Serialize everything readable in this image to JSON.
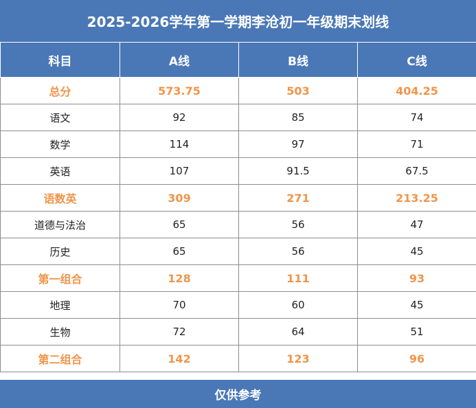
{
  "title": "2025-2026学年第一学期李沧初一年级期末划线",
  "header": {
    "subject": "科目",
    "a": "A线",
    "b": "B线",
    "c": "C线"
  },
  "rows": [
    {
      "subject": "总分",
      "a": "573.75",
      "b": "503",
      "c": "404.25",
      "highlight": true
    },
    {
      "subject": "语文",
      "a": "92",
      "b": "85",
      "c": "74",
      "highlight": false
    },
    {
      "subject": "数学",
      "a": "114",
      "b": "97",
      "c": "71",
      "highlight": false
    },
    {
      "subject": "英语",
      "a": "107",
      "b": "91.5",
      "c": "67.5",
      "highlight": false
    },
    {
      "subject": "语数英",
      "a": "309",
      "b": "271",
      "c": "213.25",
      "highlight": true
    },
    {
      "subject": "道德与法治",
      "a": "65",
      "b": "56",
      "c": "47",
      "highlight": false
    },
    {
      "subject": "历史",
      "a": "65",
      "b": "56",
      "c": "45",
      "highlight": false
    },
    {
      "subject": "第一组合",
      "a": "128",
      "b": "111",
      "c": "93",
      "highlight": true
    },
    {
      "subject": "地理",
      "a": "70",
      "b": "60",
      "c": "45",
      "highlight": false
    },
    {
      "subject": "生物",
      "a": "72",
      "b": "64",
      "c": "51",
      "highlight": false
    },
    {
      "subject": "第二组合",
      "a": "142",
      "b": "123",
      "c": "96",
      "highlight": true
    }
  ],
  "footer": "仅供参考",
  "colors": {
    "header_bg": "#4a78b7",
    "highlight_text": "#f0954a",
    "border": "#8c8c8c"
  }
}
